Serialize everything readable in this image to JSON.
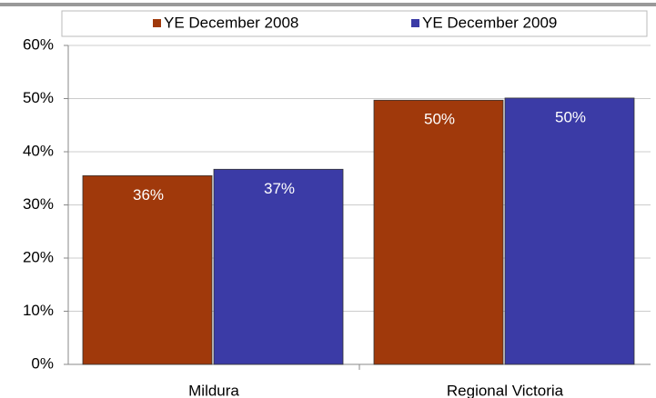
{
  "chart_data": {
    "type": "bar",
    "categories": [
      "Mildura",
      "Regional Victoria"
    ],
    "series": [
      {
        "name": "YE December 2008",
        "color": "#a0390b",
        "values": [
          35.5,
          49.7
        ],
        "value_labels": [
          "36%",
          "50%"
        ]
      },
      {
        "name": "YE December 2009",
        "color": "#3b3ba6",
        "values": [
          36.7,
          50.1
        ],
        "value_labels": [
          "37%",
          "50%"
        ]
      }
    ],
    "ylim": [
      0,
      60
    ],
    "yticks": [
      {
        "value": 0,
        "label": "0%"
      },
      {
        "value": 10,
        "label": "10%"
      },
      {
        "value": 20,
        "label": "20%"
      },
      {
        "value": 30,
        "label": "30%"
      },
      {
        "value": 40,
        "label": "40%"
      },
      {
        "value": 50,
        "label": "50%"
      },
      {
        "value": 60,
        "label": "60%"
      }
    ],
    "grid": true,
    "legend": "top"
  }
}
